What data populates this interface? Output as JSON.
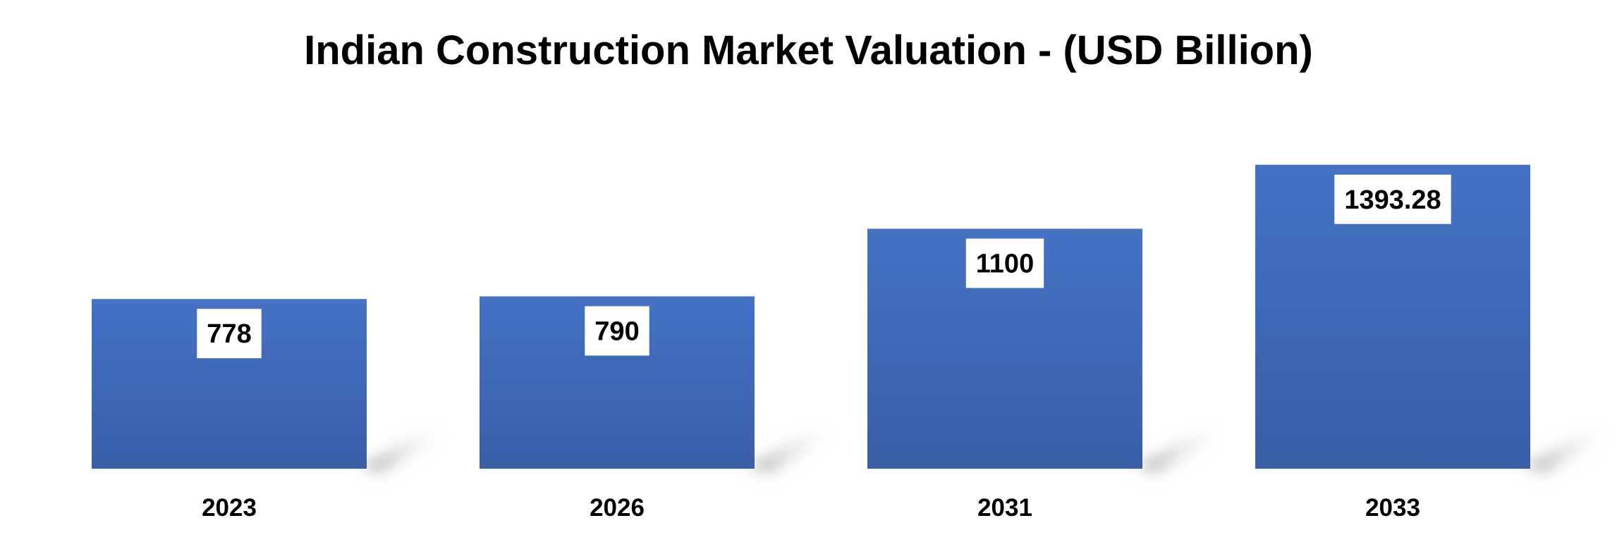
{
  "chart_data": {
    "type": "bar",
    "title": "Indian Construction Market Valuation - (USD Billion)",
    "categories": [
      "2023",
      "2026",
      "2031",
      "2033"
    ],
    "values": [
      778,
      790,
      1100,
      1393.28
    ],
    "value_labels": [
      "778",
      "790",
      "1100",
      "1393.28"
    ],
    "xlabel": "",
    "ylabel": "",
    "grid": false,
    "legend": "none",
    "colors": {
      "bar_top": "#4472C4",
      "bar_bottom": "#3A5EA8",
      "label_bg": "#FFFFFF",
      "text": "#000000"
    }
  }
}
